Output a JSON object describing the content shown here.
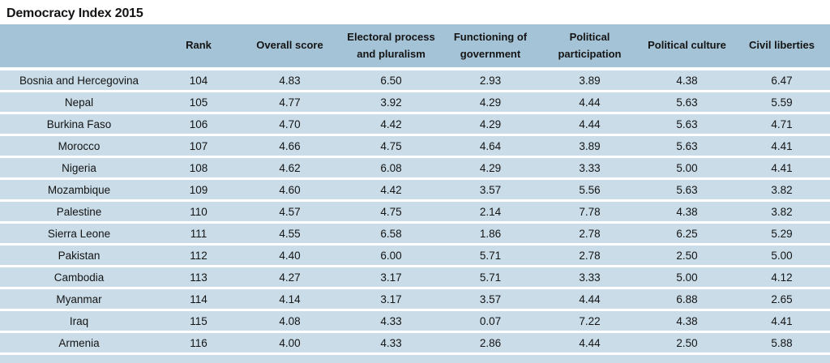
{
  "page": {
    "title": "Democracy Index 2015"
  },
  "colors": {
    "header_bg": "#a5c3d6",
    "row_bg": "#c9dce8",
    "text": "#141414",
    "background": "#ffffff"
  },
  "table": {
    "columns": [
      "",
      "Rank",
      "Overall score",
      "Electoral process and pluralism",
      "Functioning of government",
      "Political participation",
      "Political culture",
      "Civil liberties"
    ],
    "rows": [
      {
        "country": "Bosnia and Hercegovina",
        "rank": "104",
        "overall": "4.83",
        "electoral": "6.50",
        "functioning": "2.93",
        "participation": "3.89",
        "culture": "4.38",
        "liberties": "6.47"
      },
      {
        "country": "Nepal",
        "rank": "105",
        "overall": "4.77",
        "electoral": "3.92",
        "functioning": "4.29",
        "participation": "4.44",
        "culture": "5.63",
        "liberties": "5.59"
      },
      {
        "country": "Burkina Faso",
        "rank": "106",
        "overall": "4.70",
        "electoral": "4.42",
        "functioning": "4.29",
        "participation": "4.44",
        "culture": "5.63",
        "liberties": "4.71"
      },
      {
        "country": "Morocco",
        "rank": "107",
        "overall": "4.66",
        "electoral": "4.75",
        "functioning": "4.64",
        "participation": "3.89",
        "culture": "5.63",
        "liberties": "4.41"
      },
      {
        "country": "Nigeria",
        "rank": "108",
        "overall": "4.62",
        "electoral": "6.08",
        "functioning": "4.29",
        "participation": "3.33",
        "culture": "5.00",
        "liberties": "4.41"
      },
      {
        "country": "Mozambique",
        "rank": "109",
        "overall": "4.60",
        "electoral": "4.42",
        "functioning": "3.57",
        "participation": "5.56",
        "culture": "5.63",
        "liberties": "3.82"
      },
      {
        "country": "Palestine",
        "rank": "110",
        "overall": "4.57",
        "electoral": "4.75",
        "functioning": "2.14",
        "participation": "7.78",
        "culture": "4.38",
        "liberties": "3.82"
      },
      {
        "country": "Sierra Leone",
        "rank": "111",
        "overall": "4.55",
        "electoral": "6.58",
        "functioning": "1.86",
        "participation": "2.78",
        "culture": "6.25",
        "liberties": "5.29"
      },
      {
        "country": "Pakistan",
        "rank": "112",
        "overall": "4.40",
        "electoral": "6.00",
        "functioning": "5.71",
        "participation": "2.78",
        "culture": "2.50",
        "liberties": "5.00"
      },
      {
        "country": "Cambodia",
        "rank": "113",
        "overall": "4.27",
        "electoral": "3.17",
        "functioning": "5.71",
        "participation": "3.33",
        "culture": "5.00",
        "liberties": "4.12"
      },
      {
        "country": "Myanmar",
        "rank": "114",
        "overall": "4.14",
        "electoral": "3.17",
        "functioning": "3.57",
        "participation": "4.44",
        "culture": "6.88",
        "liberties": "2.65"
      },
      {
        "country": "Iraq",
        "rank": "115",
        "overall": "4.08",
        "electoral": "4.33",
        "functioning": "0.07",
        "participation": "7.22",
        "culture": "4.38",
        "liberties": "4.41"
      },
      {
        "country": "Armenia",
        "rank": "116",
        "overall": "4.00",
        "electoral": "4.33",
        "functioning": "2.86",
        "participation": "4.44",
        "culture": "2.50",
        "liberties": "5.88"
      }
    ]
  },
  "chart_data": {
    "type": "table",
    "title": "Democracy Index 2015",
    "columns": [
      "Country",
      "Rank",
      "Overall score",
      "Electoral process and pluralism",
      "Functioning of government",
      "Political participation",
      "Political culture",
      "Civil liberties"
    ],
    "rows": [
      [
        "Bosnia and Hercegovina",
        104,
        4.83,
        6.5,
        2.93,
        3.89,
        4.38,
        6.47
      ],
      [
        "Nepal",
        105,
        4.77,
        3.92,
        4.29,
        4.44,
        5.63,
        5.59
      ],
      [
        "Burkina Faso",
        106,
        4.7,
        4.42,
        4.29,
        4.44,
        5.63,
        4.71
      ],
      [
        "Morocco",
        107,
        4.66,
        4.75,
        4.64,
        3.89,
        5.63,
        4.41
      ],
      [
        "Nigeria",
        108,
        4.62,
        6.08,
        4.29,
        3.33,
        5.0,
        4.41
      ],
      [
        "Mozambique",
        109,
        4.6,
        4.42,
        3.57,
        5.56,
        5.63,
        3.82
      ],
      [
        "Palestine",
        110,
        4.57,
        4.75,
        2.14,
        7.78,
        4.38,
        3.82
      ],
      [
        "Sierra Leone",
        111,
        4.55,
        6.58,
        1.86,
        2.78,
        6.25,
        5.29
      ],
      [
        "Pakistan",
        112,
        4.4,
        6.0,
        5.71,
        2.78,
        2.5,
        5.0
      ],
      [
        "Cambodia",
        113,
        4.27,
        3.17,
        5.71,
        3.33,
        5.0,
        4.12
      ],
      [
        "Myanmar",
        114,
        4.14,
        3.17,
        3.57,
        4.44,
        6.88,
        2.65
      ],
      [
        "Iraq",
        115,
        4.08,
        4.33,
        0.07,
        7.22,
        4.38,
        4.41
      ],
      [
        "Armenia",
        116,
        4.0,
        4.33,
        2.86,
        4.44,
        2.5,
        5.88
      ]
    ]
  }
}
